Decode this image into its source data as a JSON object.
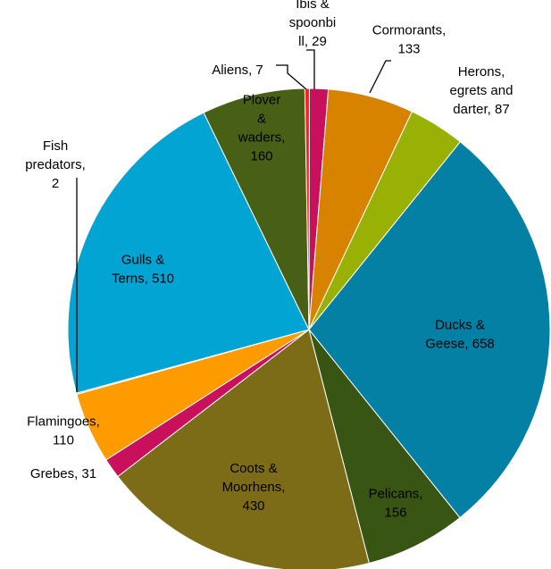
{
  "chart_data": {
    "type": "pie",
    "title": "",
    "slices": [
      {
        "label_lines": [
          "Ibis &",
          "spoonbi",
          "ll, 29"
        ],
        "category": "Ibis & spoonbill",
        "value": 29,
        "color": "#c8105c"
      },
      {
        "label_lines": [
          "Cormorants,",
          "133"
        ],
        "category": "Cormorants",
        "value": 133,
        "color": "#d88300"
      },
      {
        "label_lines": [
          "Herons,",
          "egrets and",
          "darter, 87"
        ],
        "category": "Herons, egrets and darter",
        "value": 87,
        "color": "#99b105"
      },
      {
        "label_lines": [
          "Ducks &",
          "Geese, 658"
        ],
        "category": "Ducks & Geese",
        "value": 658,
        "color": "#0580a5"
      },
      {
        "label_lines": [
          "Pelicans,",
          "156"
        ],
        "category": "Pelicans",
        "value": 156,
        "color": "#385513"
      },
      {
        "label_lines": [
          "Coots &",
          "Moorhens,",
          "430"
        ],
        "category": "Coots & Moorhens",
        "value": 430,
        "color": "#7c6b17"
      },
      {
        "label_lines": [
          "Grebes, 31"
        ],
        "category": "Grebes",
        "value": 31,
        "color": "#c8105c"
      },
      {
        "label_lines": [
          "Flamingoes,",
          "110"
        ],
        "category": "Flamingoes",
        "value": 110,
        "color": "#fd9b00"
      },
      {
        "label_lines": [
          "Fish",
          "predators,",
          "2"
        ],
        "category": "Fish predators",
        "value": 2,
        "color": "#99b105"
      },
      {
        "label_lines": [
          "Gulls &",
          "Terns, 510"
        ],
        "category": "Gulls & Terns",
        "value": 510,
        "color": "#02a4d3"
      },
      {
        "label_lines": [
          "Plover",
          "&",
          "waders,",
          "160"
        ],
        "category": "Plover & waders",
        "value": 160,
        "color": "#476016"
      },
      {
        "label_lines": [
          "Aliens, 7"
        ],
        "category": "Aliens",
        "value": 7,
        "color": "#ff1f1f"
      }
    ]
  }
}
